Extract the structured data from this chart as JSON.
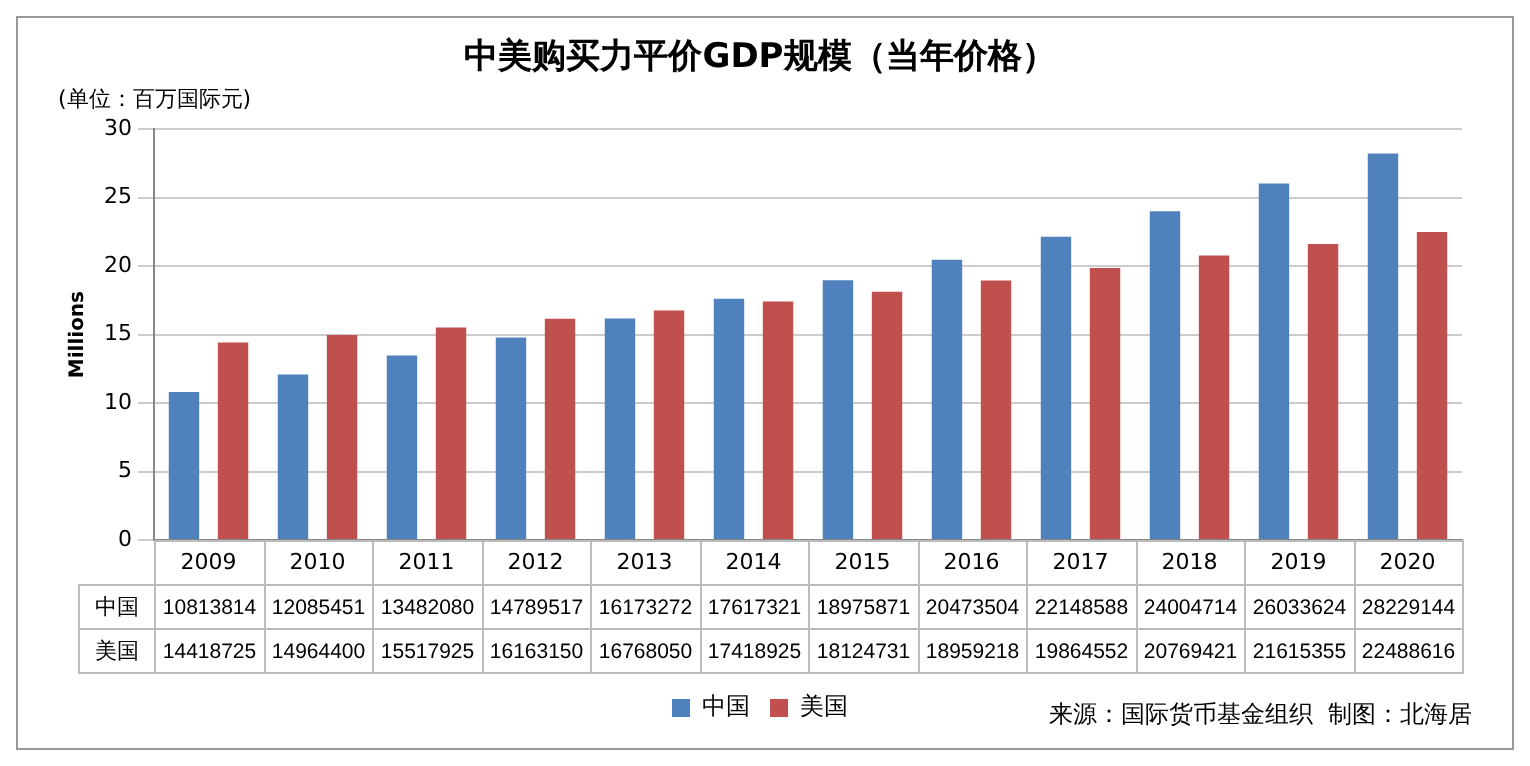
{
  "chart_data": [
    {
      "type": "bar",
      "title": "中美购买力平价GDP规模（当年价格）",
      "subtitle": "(单位：百万国际元)",
      "ylabel": "Millions",
      "categories": [
        "2009",
        "2010",
        "2011",
        "2012",
        "2013",
        "2014",
        "2015",
        "2016",
        "2017",
        "2018",
        "2019",
        "2020"
      ],
      "series": [
        {
          "name": "中国",
          "color": "#4f81bd",
          "values": [
            10.813814,
            12.085451,
            13.48208,
            14.789517,
            16.173272,
            17.617321,
            18.975871,
            20.473504,
            22.148588,
            24.004714,
            26.033624,
            28.229144
          ]
        },
        {
          "name": "美国",
          "color": "#c0504d",
          "values": [
            14.418725,
            14.9644,
            15.517925,
            16.16315,
            16.76805,
            17.418925,
            18.124731,
            18.959218,
            19.864552,
            20.769421,
            21.615355,
            22.488616
          ]
        }
      ],
      "ylim": [
        0,
        30
      ],
      "yticks": [
        0,
        5,
        10,
        15,
        20,
        25,
        30
      ],
      "grid": "y",
      "legend": "bottom",
      "annotations": [
        "来源：国际货币基金组织  制图：北海居"
      ]
    },
    {
      "type": "other",
      "annotations": [
        "中国",
        "10813814",
        "12085451",
        "13482080",
        "14789517",
        "16173272",
        "17617321",
        "18975871",
        "20473504",
        "22148588",
        "24004714",
        "26033624",
        "28229144",
        "美国",
        "14418725",
        "14964400",
        "15517925",
        "16163150",
        "16768050",
        "17418925",
        "18124731",
        "18959218",
        "19864552",
        "20769421",
        "21615355",
        "22488616"
      ]
    }
  ]
}
